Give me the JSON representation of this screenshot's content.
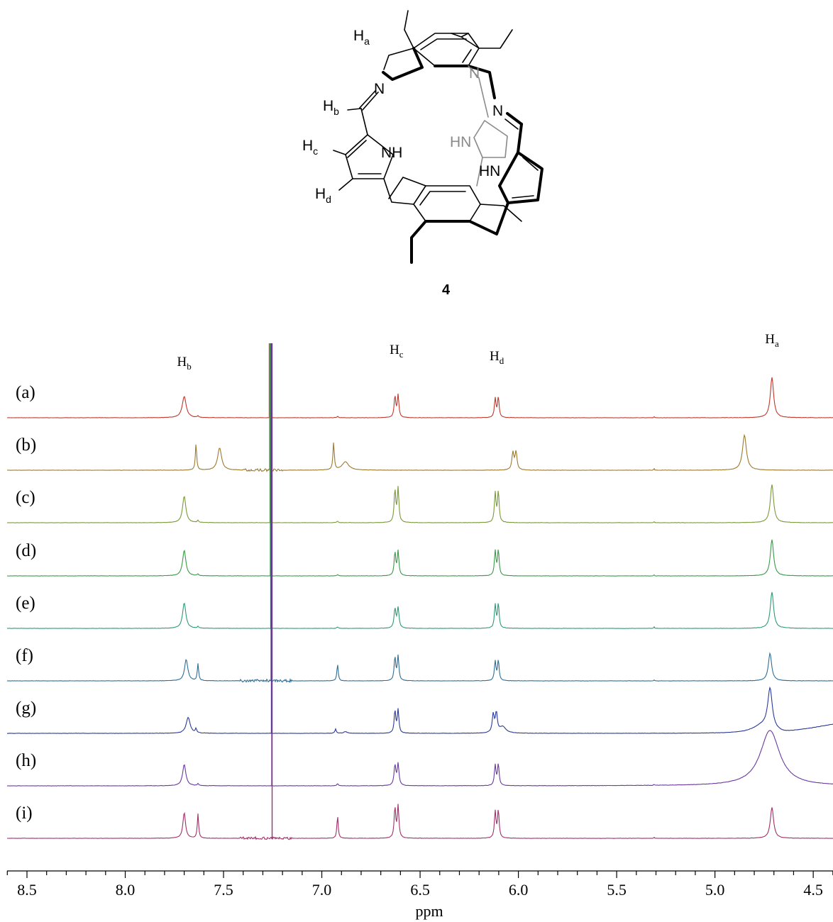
{
  "structure": {
    "compound_number": "4",
    "labels": {
      "Ha": {
        "base": "H",
        "sub": "a"
      },
      "Hb": {
        "base": "H",
        "sub": "b"
      },
      "Hc": {
        "base": "H",
        "sub": "c"
      },
      "Hd": {
        "base": "H",
        "sub": "d"
      },
      "N1": "N",
      "N2": "N",
      "N3": "N",
      "NH1": "NH",
      "NH2": "HN",
      "NH3": "HN",
      "N_right": "N"
    }
  },
  "chart_data": {
    "type": "line",
    "title": "",
    "xlabel": "ppm",
    "ylabel": "",
    "xlim": [
      8.62,
      4.35
    ],
    "x_reversed": true,
    "xticks": [
      8.5,
      8.0,
      7.5,
      7.0,
      6.5,
      6.0,
      5.5,
      5.0,
      4.5
    ],
    "xtick_labels": [
      "8.5",
      "8.0",
      "7.5",
      "7.0",
      "6.5",
      "6.0",
      "5.5",
      "5.0",
      "4.5"
    ],
    "grid": false,
    "peak_labels": [
      {
        "label": "H",
        "sub": "b",
        "ppm": 7.7
      },
      {
        "label": "H",
        "sub": "c",
        "ppm": 6.62
      },
      {
        "label": "H",
        "sub": "d",
        "ppm": 6.11
      },
      {
        "label": "H",
        "sub": "a",
        "ppm": 4.71
      }
    ],
    "solvent_peak_ppm": 7.26,
    "series": [
      {
        "name": "(a)",
        "color": "#c0392b",
        "peaks": [
          {
            "ppm": 7.7,
            "h": 1.0,
            "w": 0.012
          },
          {
            "ppm": 7.63,
            "h": 0.08,
            "w": 0.004
          },
          {
            "ppm": 6.62,
            "h": 1.05,
            "w": 0.008,
            "doublet": true
          },
          {
            "ppm": 6.11,
            "h": 0.95,
            "w": 0.008,
            "doublet": true
          },
          {
            "ppm": 6.92,
            "h": 0.06,
            "w": 0.004
          },
          {
            "ppm": 5.31,
            "h": 0.05,
            "w": 0.002
          },
          {
            "ppm": 4.71,
            "h": 1.9,
            "w": 0.01
          }
        ]
      },
      {
        "name": "(b)",
        "color": "#9c7a2e",
        "peaks": [
          {
            "ppm": 7.64,
            "h": 1.25,
            "w": 0.004
          },
          {
            "ppm": 7.52,
            "h": 1.05,
            "w": 0.012
          },
          {
            "ppm": 6.94,
            "h": 1.3,
            "w": 0.004
          },
          {
            "ppm": 6.88,
            "h": 0.4,
            "w": 0.02
          },
          {
            "ppm": 6.02,
            "h": 0.85,
            "w": 0.01,
            "doublet": true
          },
          {
            "ppm": 4.85,
            "h": 1.65,
            "w": 0.012
          },
          {
            "ppm": 5.31,
            "h": 0.08,
            "w": 0.002
          }
        ],
        "noise_region": [
          7.4,
          7.2
        ]
      },
      {
        "name": "(c)",
        "color": "#7a9a3a",
        "peaks": [
          {
            "ppm": 7.7,
            "h": 1.25,
            "w": 0.01
          },
          {
            "ppm": 7.63,
            "h": 0.1,
            "w": 0.004
          },
          {
            "ppm": 6.62,
            "h": 1.6,
            "w": 0.008,
            "doublet": true
          },
          {
            "ppm": 6.11,
            "h": 1.45,
            "w": 0.008,
            "doublet": true
          },
          {
            "ppm": 6.92,
            "h": 0.08,
            "w": 0.004
          },
          {
            "ppm": 5.31,
            "h": 0.05,
            "w": 0.002
          },
          {
            "ppm": 4.71,
            "h": 1.8,
            "w": 0.01
          }
        ]
      },
      {
        "name": "(d)",
        "color": "#3a9a48",
        "peaks": [
          {
            "ppm": 7.7,
            "h": 1.2,
            "w": 0.01
          },
          {
            "ppm": 7.63,
            "h": 0.08,
            "w": 0.004
          },
          {
            "ppm": 6.62,
            "h": 1.15,
            "w": 0.008,
            "doublet": true
          },
          {
            "ppm": 6.11,
            "h": 1.2,
            "w": 0.008,
            "doublet": true
          },
          {
            "ppm": 6.92,
            "h": 0.06,
            "w": 0.004
          },
          {
            "ppm": 5.31,
            "h": 0.06,
            "w": 0.002
          },
          {
            "ppm": 4.71,
            "h": 1.7,
            "w": 0.01
          }
        ]
      },
      {
        "name": "(e)",
        "color": "#2e9a7a",
        "peaks": [
          {
            "ppm": 7.7,
            "h": 1.2,
            "w": 0.01
          },
          {
            "ppm": 7.63,
            "h": 0.08,
            "w": 0.004
          },
          {
            "ppm": 6.62,
            "h": 0.95,
            "w": 0.009,
            "doublet": true
          },
          {
            "ppm": 6.11,
            "h": 1.15,
            "w": 0.008,
            "doublet": true
          },
          {
            "ppm": 6.92,
            "h": 0.07,
            "w": 0.004
          },
          {
            "ppm": 5.31,
            "h": 0.08,
            "w": 0.002
          },
          {
            "ppm": 4.71,
            "h": 1.7,
            "w": 0.01
          }
        ]
      },
      {
        "name": "(f)",
        "color": "#2e6e94",
        "peaks": [
          {
            "ppm": 7.69,
            "h": 1.0,
            "w": 0.01
          },
          {
            "ppm": 7.63,
            "h": 0.8,
            "w": 0.004
          },
          {
            "ppm": 6.92,
            "h": 0.8,
            "w": 0.004
          },
          {
            "ppm": 6.62,
            "h": 1.15,
            "w": 0.008,
            "doublet": true
          },
          {
            "ppm": 6.11,
            "h": 0.95,
            "w": 0.008,
            "doublet": true
          },
          {
            "ppm": 5.31,
            "h": 0.05,
            "w": 0.002
          },
          {
            "ppm": 4.72,
            "h": 1.3,
            "w": 0.01
          }
        ],
        "noise_region": [
          7.42,
          7.15
        ]
      },
      {
        "name": "(g)",
        "color": "#2a3a9a",
        "peaks": [
          {
            "ppm": 7.68,
            "h": 0.75,
            "w": 0.012
          },
          {
            "ppm": 7.64,
            "h": 0.2,
            "w": 0.004
          },
          {
            "ppm": 6.93,
            "h": 0.2,
            "w": 0.004
          },
          {
            "ppm": 6.88,
            "h": 0.08,
            "w": 0.01
          },
          {
            "ppm": 6.62,
            "h": 1.1,
            "w": 0.008,
            "doublet": true
          },
          {
            "ppm": 6.12,
            "h": 0.9,
            "w": 0.01,
            "doublet": true
          },
          {
            "ppm": 6.08,
            "h": 0.3,
            "w": 0.02
          },
          {
            "ppm": 4.72,
            "h": 1.9,
            "w": 0.014
          },
          {
            "ppm": 4.76,
            "h": 0.35,
            "w": 0.06
          }
        ],
        "rising_baseline": [
          4.65,
          0.5
        ]
      },
      {
        "name": "(h)",
        "color": "#6a3aa0",
        "peaks": [
          {
            "ppm": 7.7,
            "h": 1.0,
            "w": 0.01
          },
          {
            "ppm": 7.63,
            "h": 0.1,
            "w": 0.004
          },
          {
            "ppm": 6.92,
            "h": 0.1,
            "w": 0.004
          },
          {
            "ppm": 6.62,
            "h": 1.0,
            "w": 0.009,
            "doublet": true
          },
          {
            "ppm": 6.11,
            "h": 1.0,
            "w": 0.008,
            "doublet": true
          },
          {
            "ppm": 5.31,
            "h": 0.05,
            "w": 0.002
          },
          {
            "ppm": 4.72,
            "h": 2.6,
            "w": 0.06
          }
        ]
      },
      {
        "name": "(i)",
        "color": "#a0306a",
        "peaks": [
          {
            "ppm": 7.7,
            "h": 1.2,
            "w": 0.008
          },
          {
            "ppm": 7.63,
            "h": 1.15,
            "w": 0.004
          },
          {
            "ppm": 6.92,
            "h": 1.05,
            "w": 0.004
          },
          {
            "ppm": 6.62,
            "h": 1.5,
            "w": 0.008,
            "doublet": true
          },
          {
            "ppm": 6.11,
            "h": 1.3,
            "w": 0.008,
            "doublet": true
          },
          {
            "ppm": 5.31,
            "h": 0.05,
            "w": 0.002
          },
          {
            "ppm": 4.71,
            "h": 1.45,
            "w": 0.01
          }
        ],
        "noise_region": [
          7.42,
          7.15
        ]
      }
    ]
  }
}
